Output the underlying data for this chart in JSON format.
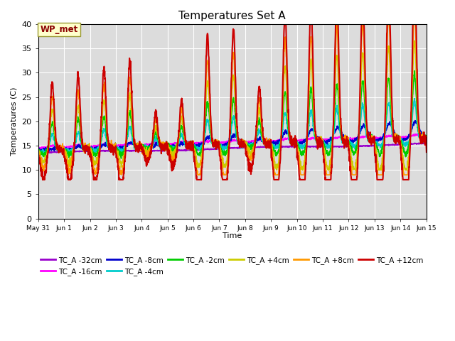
{
  "title": "Temperatures Set A",
  "xlabel": "Time",
  "ylabel": "Temperatures (C)",
  "ylim": [
    0,
    40
  ],
  "yticks": [
    0,
    5,
    10,
    15,
    20,
    25,
    30,
    35,
    40
  ],
  "bg_color": "#dcdcdc",
  "annotation_text": "WP_met",
  "annotation_color": "#8B0000",
  "annotation_bg": "#ffffcc",
  "series": [
    {
      "label": "TC_A -32cm",
      "color": "#9900cc",
      "lw": 1.2
    },
    {
      "label": "TC_A -16cm",
      "color": "#ff00ff",
      "lw": 1.2
    },
    {
      "label": "TC_A -8cm",
      "color": "#0000cc",
      "lw": 1.2
    },
    {
      "label": "TC_A -4cm",
      "color": "#00cccc",
      "lw": 1.2
    },
    {
      "label": "TC_A -2cm",
      "color": "#00cc00",
      "lw": 1.2
    },
    {
      "label": "TC_A +4cm",
      "color": "#cccc00",
      "lw": 1.2
    },
    {
      "label": "TC_A +8cm",
      "color": "#ff9900",
      "lw": 1.2
    },
    {
      "label": "TC_A +12cm",
      "color": "#cc0000",
      "lw": 1.5
    }
  ],
  "xtick_labels": [
    "May 31",
    "Jun 1",
    "Jun 2",
    "Jun 3",
    "Jun 4",
    "Jun 5",
    "Jun 6",
    "Jun 7",
    "Jun 8",
    "Jun 9",
    "Jun 10",
    "Jun 11",
    "Jun 12",
    "Jun 13",
    "Jun 14",
    "Jun 15"
  ],
  "n_days": 16,
  "pts_per_day": 144
}
